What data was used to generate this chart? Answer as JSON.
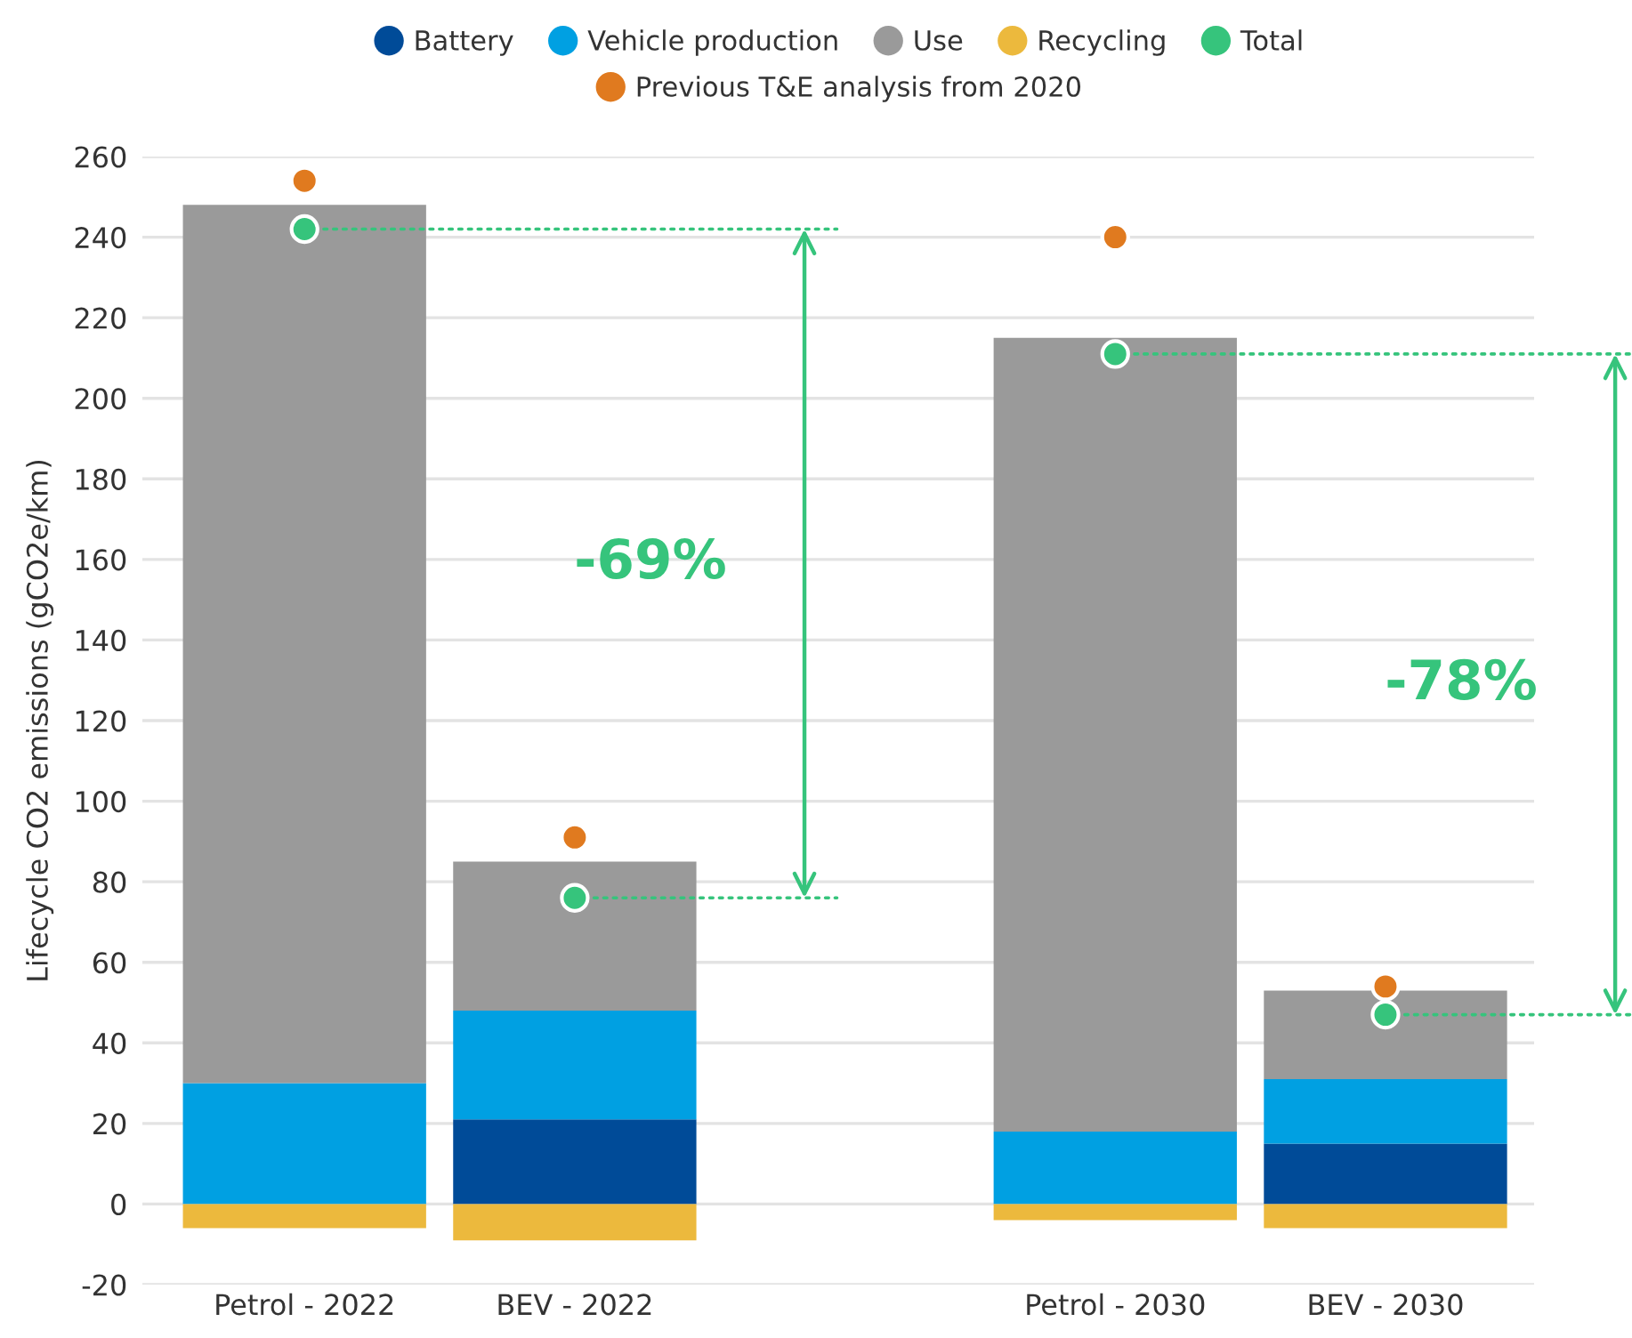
{
  "chart_data": {
    "type": "bar",
    "stacked": true,
    "categories": [
      "Petrol - 2022",
      "BEV - 2022",
      null,
      "Petrol - 2030",
      "BEV - 2030"
    ],
    "ylabel": "Lifecycle CO2 emissions (gCO2e/km)",
    "series": [
      {
        "name": "Battery",
        "color": "#004b98",
        "values": [
          null,
          21,
          null,
          null,
          15
        ]
      },
      {
        "name": "Vehicle production",
        "color": "#00a0e2",
        "values": [
          30,
          27,
          null,
          18,
          16
        ]
      },
      {
        "name": "Use",
        "color": "#9a9a9a",
        "values": [
          218,
          37,
          null,
          197,
          22
        ]
      },
      {
        "name": "Recycling",
        "color": "#ecb93d",
        "values": [
          -6,
          -9,
          null,
          -4,
          -6
        ]
      },
      {
        "name": "Total",
        "type": "scatter",
        "color": "#36c47c",
        "x": [
          "Petrol - 2022",
          "BEV - 2022",
          "Petrol - 2030",
          "BEV - 2030"
        ],
        "values": [
          242,
          76,
          211,
          47
        ]
      },
      {
        "name": "Previous T&E analysis from 2020",
        "type": "scatter",
        "color": "#e07a1f",
        "x": [
          "Petrol - 2022",
          "BEV - 2022",
          "Petrol - 2030",
          "BEV - 2030"
        ],
        "values": [
          254,
          91,
          240,
          54
        ]
      }
    ],
    "ylim": [
      -20,
      260
    ],
    "yticks": [
      -20,
      0,
      20,
      40,
      60,
      80,
      100,
      120,
      140,
      160,
      180,
      200,
      220,
      240,
      260
    ],
    "grid": "y",
    "legend": "top",
    "marker": "circle",
    "annotations": [
      "-69%",
      "-78%"
    ]
  }
}
